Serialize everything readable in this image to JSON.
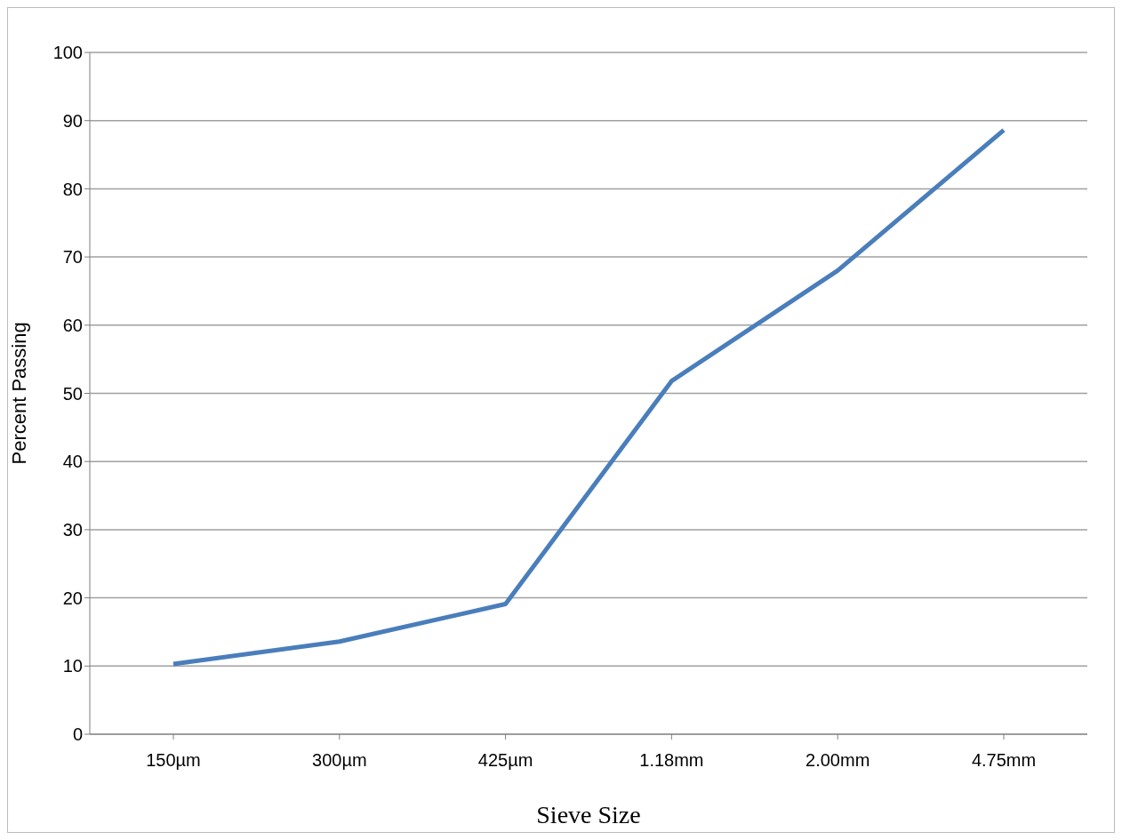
{
  "chart_data": {
    "type": "line",
    "xlabel": "Sieve Size",
    "ylabel": "Percent Passing",
    "categories": [
      "150µm",
      "300µm",
      "425µm",
      "1.18mm",
      "2.00mm",
      "4.75mm"
    ],
    "series": [
      {
        "color": "#4a7ebb",
        "values": [
          10.3,
          13.6,
          19.1,
          51.8,
          68.0,
          88.6
        ]
      }
    ],
    "ylim": [
      0,
      100
    ],
    "yticks": [
      0,
      10,
      20,
      30,
      40,
      50,
      60,
      70,
      80,
      90,
      100
    ],
    "grid": "y",
    "legend": false,
    "marker": "none",
    "line_style": "solid"
  }
}
